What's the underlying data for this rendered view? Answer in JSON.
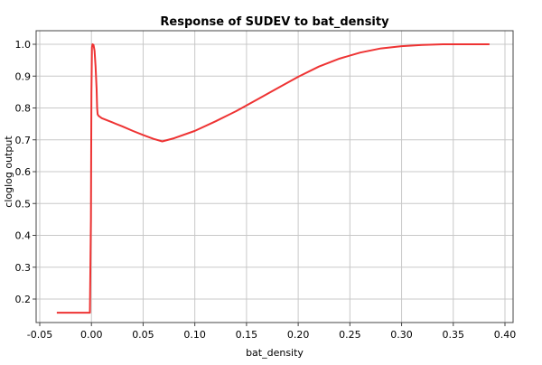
{
  "chart_data": {
    "type": "line",
    "title": "Response of SUDEV to bat_density",
    "xlabel": "bat_density",
    "ylabel": "cloglog output",
    "xlim": [
      -0.05,
      0.4
    ],
    "ylim": [
      0.12,
      1.04
    ],
    "xticks": [
      {
        "value": -0.05,
        "label": "-0.05"
      },
      {
        "value": 0.0,
        "label": "0.00"
      },
      {
        "value": 0.05,
        "label": "0.05"
      },
      {
        "value": 0.1,
        "label": "0.10"
      },
      {
        "value": 0.15,
        "label": "0.15"
      },
      {
        "value": 0.2,
        "label": "0.20"
      },
      {
        "value": 0.25,
        "label": "0.25"
      },
      {
        "value": 0.3,
        "label": "0.30"
      },
      {
        "value": 0.35,
        "label": "0.35"
      },
      {
        "value": 0.4,
        "label": "0.40"
      }
    ],
    "yticks": [
      {
        "value": 0.2,
        "label": "0.2"
      },
      {
        "value": 0.3,
        "label": "0.3"
      },
      {
        "value": 0.4,
        "label": "0.4"
      },
      {
        "value": 0.5,
        "label": "0.5"
      },
      {
        "value": 0.6,
        "label": "0.6"
      },
      {
        "value": 0.7,
        "label": "0.7"
      },
      {
        "value": 0.8,
        "label": "0.8"
      },
      {
        "value": 0.9,
        "label": "0.9"
      },
      {
        "value": 1.0,
        "label": "1.0"
      }
    ],
    "grid": true,
    "legend": "none",
    "series": [
      {
        "color": "#ee3333",
        "x": [
          -0.0335,
          -0.02,
          -0.01,
          -0.0015,
          -0.0005,
          0.0,
          0.0005,
          0.001,
          0.002,
          0.003,
          0.004,
          0.005,
          0.0055,
          0.006,
          0.007,
          0.01,
          0.02,
          0.03,
          0.04,
          0.05,
          0.06,
          0.0685,
          0.08,
          0.1,
          0.12,
          0.14,
          0.16,
          0.18,
          0.2,
          0.22,
          0.24,
          0.26,
          0.28,
          0.3,
          0.32,
          0.34,
          0.36,
          0.385
        ],
        "y": [
          0.157,
          0.157,
          0.157,
          0.157,
          0.45,
          0.85,
          0.99,
          1.0,
          0.998,
          0.98,
          0.93,
          0.86,
          0.8,
          0.78,
          0.775,
          0.768,
          0.755,
          0.742,
          0.728,
          0.715,
          0.703,
          0.695,
          0.705,
          0.728,
          0.758,
          0.79,
          0.826,
          0.862,
          0.898,
          0.93,
          0.955,
          0.974,
          0.987,
          0.994,
          0.998,
          1.0,
          1.0,
          1.0
        ]
      }
    ]
  },
  "colors": {
    "background": "#ffffff",
    "plot_background": "#ffffff",
    "grid": "#c8c8c8",
    "axis": "#444444",
    "series": "#ee3333"
  }
}
